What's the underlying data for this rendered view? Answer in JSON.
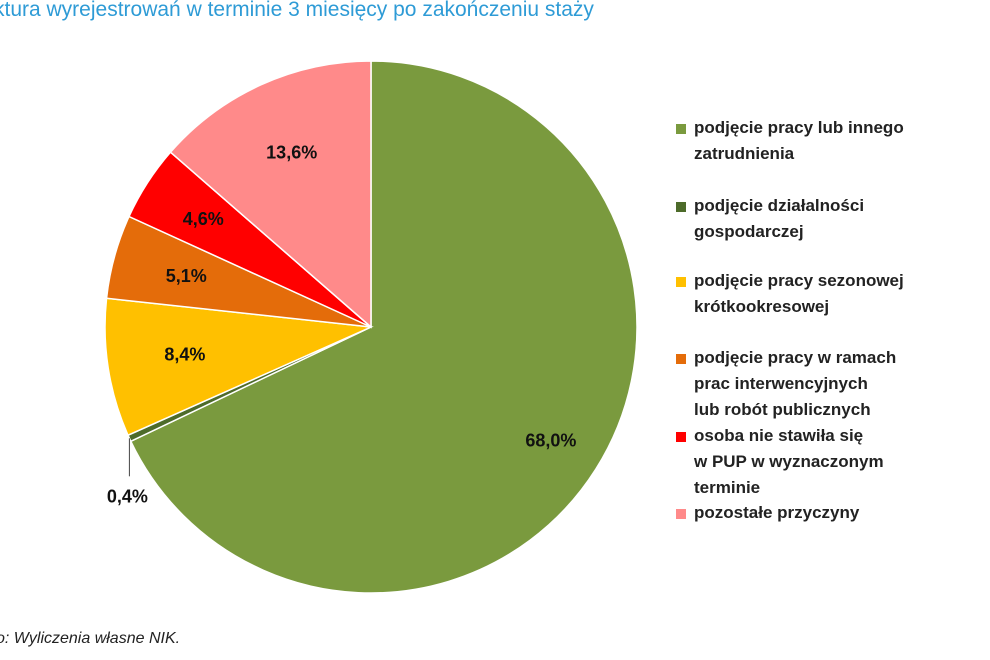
{
  "title": "ktura wyrejestrowań w terminie 3 miesięcy po zakończeniu staży",
  "source": "o: Wyliczenia własne NIK.",
  "chart_data": {
    "type": "pie",
    "title": "ktura wyrejestrowań w terminie 3 miesięcy po zakończeniu staży",
    "start_angle_deg": 0,
    "direction": "clockwise",
    "categories": [
      "podjęcie pracy lub innego zatrudnienia",
      "podjęcie działalności gospodarczej",
      "podjęcie pracy sezonowej krótkookresowej",
      "podjęcie pracy w ramach prac interwencyjnych lub robót publicznych",
      "osoba nie stawiła się w PUP w wyznaczonym terminie",
      "pozostałe przyczyny"
    ],
    "values": [
      68.0,
      0.4,
      8.4,
      5.1,
      4.6,
      13.6
    ],
    "labels": [
      "68,0%",
      "0,4%",
      "8,4%",
      "5,1%",
      "4,6%",
      "13,6%"
    ],
    "colors": [
      "#7a9a3e",
      "#4d6b2a",
      "#ffc000",
      "#e46c0a",
      "#ff0000",
      "#ff8a8a"
    ],
    "legend": {
      "position": "right",
      "entries": [
        "podjęcie pracy lub innego zatrudnienia",
        "podjęcie działalności gospodarczej",
        "podjęcie pracy sezonowej krótkookresowej",
        "podjęcie pracy w ramach prac interwencyjnych lub robót publicznych",
        "osoba nie stawiła się w PUP w wyznaczonym terminie",
        "pozostałe przyczyny"
      ]
    }
  }
}
